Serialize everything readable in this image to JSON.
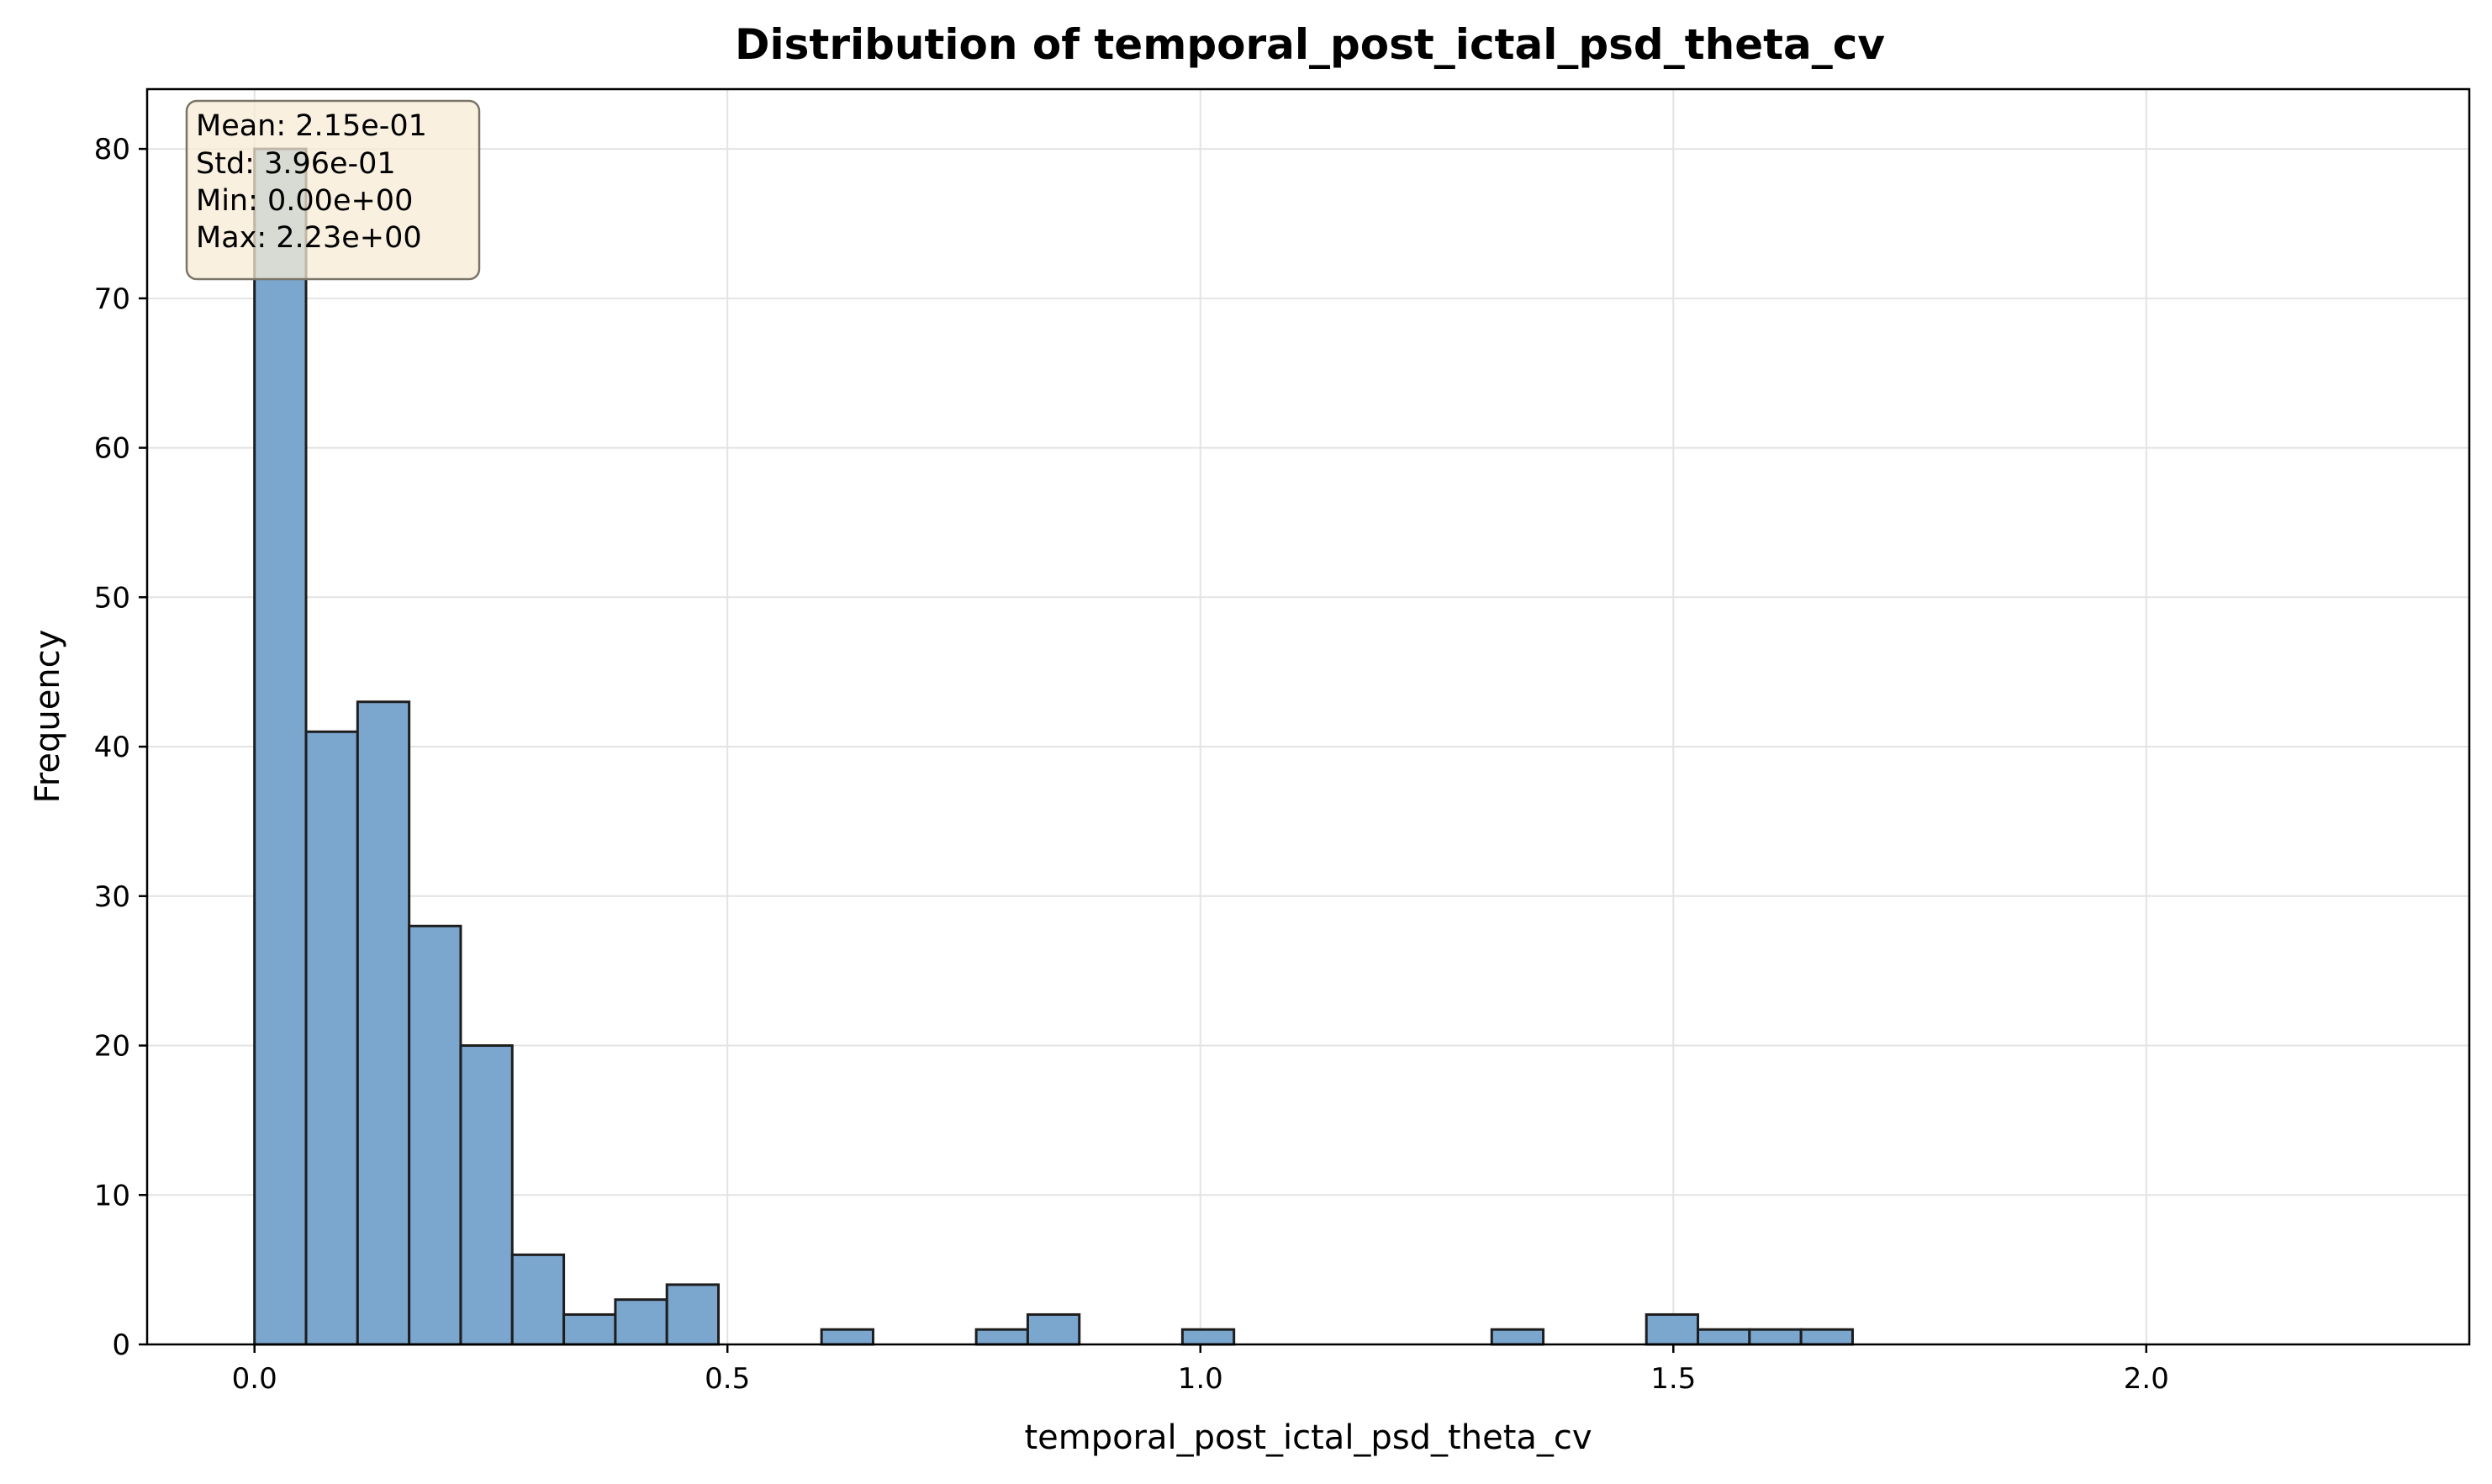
{
  "colors": {
    "bar_fill": "#7ba6cd",
    "bar_edge": "#1e1e1e",
    "grid": "#e3e3e3",
    "stats_box_fill": "#f7ebd5",
    "stats_box_edge": "#7a7467"
  },
  "chart_data": {
    "type": "bar",
    "title": "Distribution of temporal_post_ictal_psd_theta_cv",
    "xlabel": "temporal_post_ictal_psd_theta_cv",
    "ylabel": "Frequency",
    "xlim": [
      -0.1135,
      2.3415
    ],
    "ylim": [
      0,
      84
    ],
    "xticks": [
      0.0,
      0.5,
      1.0,
      1.5,
      2.0
    ],
    "xtick_labels": [
      "0.0",
      "0.5",
      "1.0",
      "1.5",
      "2.0"
    ],
    "yticks": [
      0,
      10,
      20,
      30,
      40,
      50,
      60,
      70,
      80
    ],
    "ytick_labels": [
      "0",
      "10",
      "20",
      "30",
      "40",
      "50",
      "60",
      "70",
      "80"
    ],
    "grid": true,
    "bin_start": 0.0,
    "bin_width": 0.0545,
    "values": [
      80,
      41,
      43,
      28,
      20,
      6,
      2,
      3,
      4,
      0,
      0,
      1,
      0,
      0,
      1,
      2,
      0,
      0,
      1,
      0,
      0,
      0,
      0,
      0,
      1,
      0,
      0,
      2,
      1,
      1,
      1,
      0,
      0,
      0,
      0,
      0,
      0,
      0,
      0,
      0,
      0
    ],
    "legend": "",
    "annotations": {
      "stats_box": {
        "placement": "top-left",
        "lines": [
          "Mean: 2.15e-01",
          "Std: 3.96e-01",
          "Min: 0.00e+00",
          "Max: 2.23e+00"
        ]
      }
    }
  }
}
